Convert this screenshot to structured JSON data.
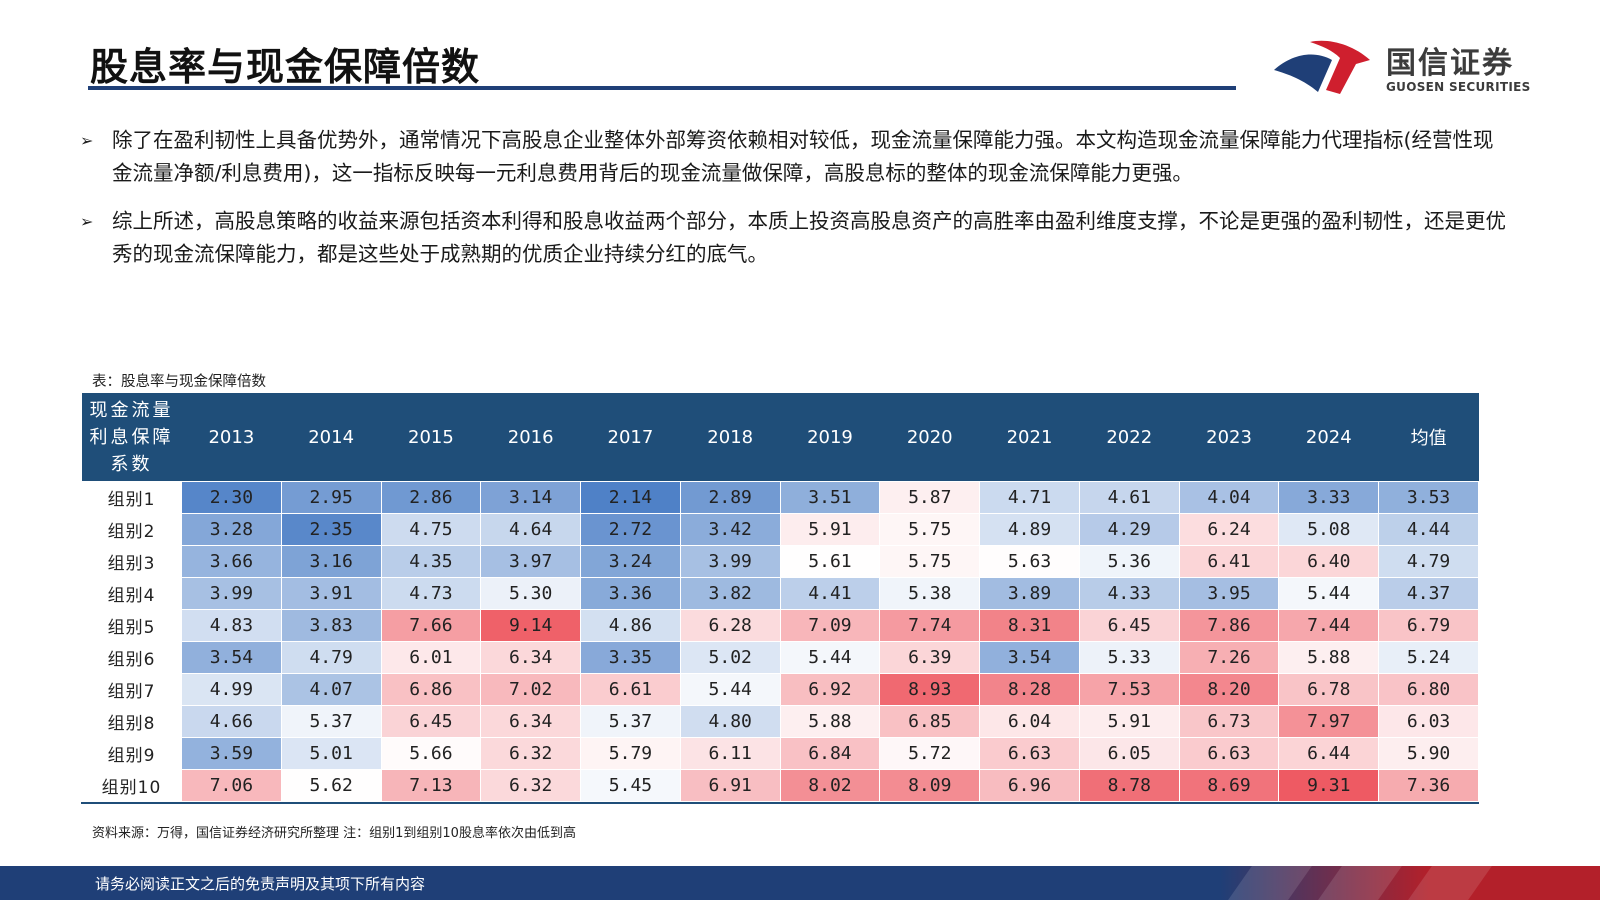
{
  "header": {
    "title": "股息率与现金保障倍数",
    "logo_cn": "国信证券",
    "logo_en": "GUOSEN SECURITIES",
    "rule_color": "#1f3f77"
  },
  "bullets": [
    {
      "marker": "➢",
      "text": "除了在盈利韧性上具备优势外，通常情况下高股息企业整体外部筹资依赖相对较低，现金流量保障能力强。本文构造现金流量保障能力代理指标(经营性现金流量净额/利息费用)，这一指标反映每一元利息费用背后的现金流量做保障，高股息标的整体的现金流保障能力更强。"
    },
    {
      "marker": "➢",
      "text": "综上所述，高股息策略的收益来源包括资本利得和股息收益两个部分，本质上投资高股息资产的高胜率由盈利维度支撑，不论是更强的盈利韧性，还是更优秀的现金流保障能力，都是这些处于成熟期的优质企业持续分红的底气。"
    }
  ],
  "table": {
    "caption": "表：股息率与现金保障倍数",
    "corner_header": "现金流量利息保障系数",
    "columns": [
      "2013",
      "2014",
      "2015",
      "2016",
      "2017",
      "2018",
      "2019",
      "2020",
      "2021",
      "2022",
      "2023",
      "2024",
      "均值"
    ],
    "rows": [
      {
        "label": "组别1",
        "values": [
          "2.30",
          "2.95",
          "2.86",
          "3.14",
          "2.14",
          "2.89",
          "3.51",
          "5.87",
          "4.71",
          "4.61",
          "4.04",
          "3.33",
          "3.53"
        ]
      },
      {
        "label": "组别2",
        "values": [
          "3.28",
          "2.35",
          "4.75",
          "4.64",
          "2.72",
          "3.42",
          "5.91",
          "5.75",
          "4.89",
          "4.29",
          "6.24",
          "5.08",
          "4.44"
        ]
      },
      {
        "label": "组别3",
        "values": [
          "3.66",
          "3.16",
          "4.35",
          "3.97",
          "3.24",
          "3.99",
          "5.61",
          "5.75",
          "5.63",
          "5.36",
          "6.41",
          "6.40",
          "4.79"
        ]
      },
      {
        "label": "组别4",
        "values": [
          "3.99",
          "3.91",
          "4.73",
          "5.30",
          "3.36",
          "3.82",
          "4.41",
          "5.38",
          "3.89",
          "4.33",
          "3.95",
          "5.44",
          "4.37"
        ]
      },
      {
        "label": "组别5",
        "values": [
          "4.83",
          "3.83",
          "7.66",
          "9.14",
          "4.86",
          "6.28",
          "7.09",
          "7.74",
          "8.31",
          "6.45",
          "7.86",
          "7.44",
          "6.79"
        ]
      },
      {
        "label": "组别6",
        "values": [
          "3.54",
          "4.79",
          "6.01",
          "6.34",
          "3.35",
          "5.02",
          "5.44",
          "6.39",
          "3.54",
          "5.33",
          "7.26",
          "5.88",
          "5.24"
        ]
      },
      {
        "label": "组别7",
        "values": [
          "4.99",
          "4.07",
          "6.86",
          "7.02",
          "6.61",
          "5.44",
          "6.92",
          "8.93",
          "8.28",
          "7.53",
          "8.20",
          "6.78",
          "6.80"
        ]
      },
      {
        "label": "组别8",
        "values": [
          "4.66",
          "5.37",
          "6.45",
          "6.34",
          "5.37",
          "4.80",
          "5.88",
          "6.85",
          "6.04",
          "5.91",
          "6.73",
          "7.97",
          "6.03"
        ]
      },
      {
        "label": "组别9",
        "values": [
          "3.59",
          "5.01",
          "5.66",
          "6.32",
          "5.79",
          "6.11",
          "6.84",
          "5.72",
          "6.63",
          "6.05",
          "6.63",
          "6.44",
          "5.90"
        ]
      },
      {
        "label": "组别10",
        "values": [
          "7.06",
          "5.62",
          "7.13",
          "6.32",
          "5.45",
          "6.91",
          "8.02",
          "8.09",
          "6.96",
          "8.78",
          "8.69",
          "9.31",
          "7.36"
        ]
      }
    ],
    "colors": {
      "low": "#4f81c7",
      "mid": "#ffffff",
      "high": "#ee5a63",
      "header_bg": "#1f4e79"
    }
  },
  "source_note": "资料来源：万得，国信证券经济研究所整理 注：组别1到组别10股息率依次由低到高",
  "footer": {
    "text": "请务必阅读正文之后的免责声明及其项下所有内容"
  }
}
